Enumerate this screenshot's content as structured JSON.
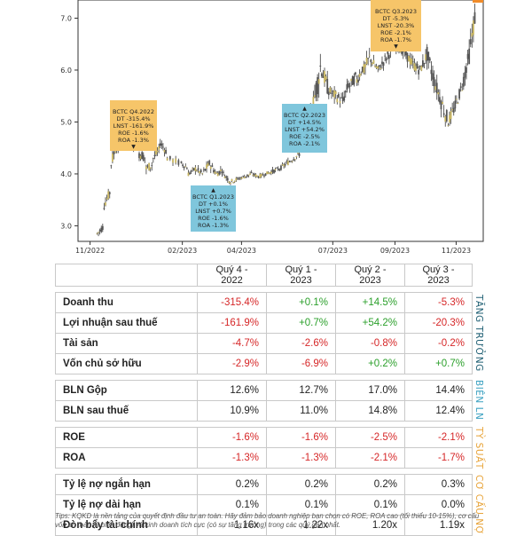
{
  "chart_data": {
    "type": "candlestick",
    "y_ticks": [
      "3.0",
      "4.0",
      "5.0",
      "6.0",
      "7.0"
    ],
    "y_range": [
      2.7,
      7.35
    ],
    "x_ticks": [
      "11/2022",
      "02/2023",
      "04/2023",
      "07/2023",
      "09/2023",
      "11/2023"
    ],
    "series_color_up": "#3a3a3a",
    "series_color_body": "#c8b560",
    "prices": [
      {
        "t": "2022-11-08",
        "o": 2.85,
        "h": 3.2,
        "l": 2.8,
        "c": 3.0
      },
      {
        "t": "2022-11-15",
        "o": 3.4,
        "h": 3.8,
        "l": 3.3,
        "c": 3.7
      },
      {
        "t": "2022-11-22",
        "o": 4.2,
        "h": 4.8,
        "l": 4.1,
        "c": 4.7
      },
      {
        "t": "2022-11-29",
        "o": 4.5,
        "h": 5.1,
        "l": 4.4,
        "c": 4.9
      },
      {
        "t": "2022-12-06",
        "o": 4.8,
        "h": 5.2,
        "l": 4.6,
        "c": 4.9
      },
      {
        "t": "2022-12-13",
        "o": 4.6,
        "h": 4.9,
        "l": 4.4,
        "c": 4.5
      },
      {
        "t": "2022-12-20",
        "o": 4.4,
        "h": 4.7,
        "l": 4.1,
        "c": 4.3
      },
      {
        "t": "2022-12-27",
        "o": 4.1,
        "h": 4.4,
        "l": 3.9,
        "c": 4.2
      },
      {
        "t": "2023-01-03",
        "o": 4.3,
        "h": 4.6,
        "l": 4.2,
        "c": 4.5
      },
      {
        "t": "2023-01-10",
        "o": 4.6,
        "h": 4.7,
        "l": 4.3,
        "c": 4.4
      },
      {
        "t": "2023-01-17",
        "o": 4.3,
        "h": 4.5,
        "l": 4.1,
        "c": 4.2
      },
      {
        "t": "2023-01-31",
        "o": 4.2,
        "h": 4.3,
        "l": 4.0,
        "c": 4.1
      },
      {
        "t": "2023-02-07",
        "o": 4.0,
        "h": 4.2,
        "l": 3.9,
        "c": 4.1
      },
      {
        "t": "2023-02-14",
        "o": 4.1,
        "h": 4.3,
        "l": 3.95,
        "c": 4.0
      },
      {
        "t": "2023-02-21",
        "o": 4.0,
        "h": 4.3,
        "l": 3.9,
        "c": 4.2
      },
      {
        "t": "2023-02-28",
        "o": 4.2,
        "h": 4.3,
        "l": 3.9,
        "c": 4.0
      },
      {
        "t": "2023-03-07",
        "o": 4.0,
        "h": 4.2,
        "l": 3.85,
        "c": 4.1
      },
      {
        "t": "2023-03-14",
        "o": 4.0,
        "h": 4.1,
        "l": 3.8,
        "c": 3.85
      },
      {
        "t": "2023-03-21",
        "o": 3.85,
        "h": 4.0,
        "l": 3.75,
        "c": 3.9
      },
      {
        "t": "2023-03-28",
        "o": 3.9,
        "h": 4.0,
        "l": 3.8,
        "c": 3.95
      },
      {
        "t": "2023-04-04",
        "o": 3.95,
        "h": 4.1,
        "l": 3.85,
        "c": 4.0
      },
      {
        "t": "2023-04-11",
        "o": 4.0,
        "h": 4.1,
        "l": 3.9,
        "c": 3.95
      },
      {
        "t": "2023-04-18",
        "o": 3.95,
        "h": 4.05,
        "l": 3.85,
        "c": 4.0
      },
      {
        "t": "2023-04-25",
        "o": 4.0,
        "h": 4.1,
        "l": 3.9,
        "c": 4.05
      },
      {
        "t": "2023-05-02",
        "o": 4.05,
        "h": 4.2,
        "l": 3.95,
        "c": 4.1
      },
      {
        "t": "2023-05-09",
        "o": 4.1,
        "h": 4.3,
        "l": 4.05,
        "c": 4.2
      },
      {
        "t": "2023-05-16",
        "o": 4.2,
        "h": 4.4,
        "l": 4.1,
        "c": 4.3
      },
      {
        "t": "2023-05-23",
        "o": 4.3,
        "h": 4.5,
        "l": 4.2,
        "c": 4.4
      },
      {
        "t": "2023-05-30",
        "o": 4.5,
        "h": 5.2,
        "l": 4.4,
        "c": 5.0
      },
      {
        "t": "2023-06-06",
        "o": 5.0,
        "h": 5.6,
        "l": 4.9,
        "c": 5.5
      },
      {
        "t": "2023-06-13",
        "o": 5.5,
        "h": 6.8,
        "l": 5.4,
        "c": 6.2
      },
      {
        "t": "2023-06-20",
        "o": 6.0,
        "h": 6.3,
        "l": 5.4,
        "c": 5.6
      },
      {
        "t": "2023-06-27",
        "o": 5.6,
        "h": 5.9,
        "l": 5.3,
        "c": 5.5
      },
      {
        "t": "2023-07-04",
        "o": 5.5,
        "h": 5.8,
        "l": 5.2,
        "c": 5.4
      },
      {
        "t": "2023-07-11",
        "o": 5.4,
        "h": 5.9,
        "l": 5.3,
        "c": 5.8
      },
      {
        "t": "2023-07-18",
        "o": 5.7,
        "h": 6.1,
        "l": 5.5,
        "c": 5.9
      },
      {
        "t": "2023-07-25",
        "o": 5.8,
        "h": 6.2,
        "l": 5.6,
        "c": 6.1
      },
      {
        "t": "2023-08-01",
        "o": 6.0,
        "h": 6.5,
        "l": 5.8,
        "c": 6.3
      },
      {
        "t": "2023-08-08",
        "o": 6.2,
        "h": 6.4,
        "l": 5.9,
        "c": 6.0
      },
      {
        "t": "2023-08-15",
        "o": 6.0,
        "h": 6.3,
        "l": 5.8,
        "c": 6.2
      },
      {
        "t": "2023-08-22",
        "o": 6.2,
        "h": 6.6,
        "l": 6.0,
        "c": 6.4
      },
      {
        "t": "2023-08-29",
        "o": 6.4,
        "h": 6.9,
        "l": 6.2,
        "c": 6.6
      },
      {
        "t": "2023-09-05",
        "o": 6.5,
        "h": 6.8,
        "l": 6.1,
        "c": 6.3
      },
      {
        "t": "2023-09-12",
        "o": 6.3,
        "h": 6.5,
        "l": 5.9,
        "c": 6.1
      },
      {
        "t": "2023-09-19",
        "o": 6.1,
        "h": 6.4,
        "l": 5.8,
        "c": 6.0
      },
      {
        "t": "2023-09-26",
        "o": 6.0,
        "h": 6.5,
        "l": 5.9,
        "c": 6.3
      },
      {
        "t": "2023-10-03",
        "o": 6.3,
        "h": 6.5,
        "l": 5.6,
        "c": 5.8
      },
      {
        "t": "2023-10-10",
        "o": 5.8,
        "h": 6.0,
        "l": 5.2,
        "c": 5.4
      },
      {
        "t": "2023-10-17",
        "o": 5.4,
        "h": 5.6,
        "l": 4.7,
        "c": 5.0
      },
      {
        "t": "2023-10-24",
        "o": 5.0,
        "h": 5.5,
        "l": 4.9,
        "c": 5.3
      },
      {
        "t": "2023-10-31",
        "o": 5.3,
        "h": 5.9,
        "l": 5.2,
        "c": 5.7
      },
      {
        "t": "2023-11-07",
        "o": 5.7,
        "h": 6.4,
        "l": 5.6,
        "c": 6.3
      },
      {
        "t": "2023-11-14",
        "o": 6.3,
        "h": 7.3,
        "l": 6.2,
        "c": 7.2
      }
    ],
    "annotations": [
      {
        "text": [
          "BCTC Q4.2022",
          "DT -315.4%",
          "LNST -161.9%",
          "ROE -1.6%",
          "ROA -1.3%"
        ],
        "color": "orange",
        "arrow": "▼"
      },
      {
        "text": [
          "BCTC Q1.2023",
          "DT +0.1%",
          "LNST +0.7%",
          "ROE -1.6%",
          "ROA -1.3%"
        ],
        "color": "blue",
        "arrow": "▲"
      },
      {
        "text": [
          "BCTC Q2.2023",
          "DT +14.5%",
          "LNST +54.2%",
          "ROE -2.5%",
          "ROA -2.1%"
        ],
        "color": "blue",
        "arrow": "▲"
      },
      {
        "text": [
          "BCTC Q3.2023",
          "DT -5.3%",
          "LNST -20.3%",
          "ROE -2.1%",
          "ROA -1.7%"
        ],
        "color": "orange",
        "arrow": "▼"
      }
    ]
  },
  "table": {
    "headers": [
      "Quý 4 - 2022",
      "Quý 1 - 2023",
      "Quý 2 - 2023",
      "Quý 3 - 2023"
    ],
    "groups": [
      {
        "side_label": "TĂNG TRƯỞNG",
        "side_color": "#1f5f73",
        "rows": [
          {
            "label": "Doanh thu",
            "values": [
              "-315.4%",
              "+0.1%",
              "+14.5%",
              "-5.3%"
            ],
            "colors": [
              "neg",
              "pos",
              "pos",
              "neg"
            ]
          },
          {
            "label": "Lợi nhuận sau thuế",
            "values": [
              "-161.9%",
              "+0.7%",
              "+54.2%",
              "-20.3%"
            ],
            "colors": [
              "neg",
              "pos",
              "pos",
              "neg"
            ]
          },
          {
            "label": "Tài sản",
            "values": [
              "-4.7%",
              "-2.6%",
              "-0.8%",
              "-0.2%"
            ],
            "colors": [
              "neg",
              "neg",
              "neg",
              "neg"
            ]
          },
          {
            "label": "Vốn chủ sở hữu",
            "values": [
              "-2.9%",
              "-6.9%",
              "+0.2%",
              "+0.7%"
            ],
            "colors": [
              "neg",
              "neg",
              "pos",
              "pos"
            ]
          }
        ]
      },
      {
        "side_label": "BIÊN LN",
        "side_color": "#3fa3c2",
        "rows": [
          {
            "label": "BLN Gộp",
            "values": [
              "12.6%",
              "12.7%",
              "17.0%",
              "14.4%"
            ],
            "colors": [
              "",
              "",
              "",
              ""
            ]
          },
          {
            "label": "BLN sau thuế",
            "values": [
              "10.9%",
              "11.0%",
              "14.8%",
              "12.4%"
            ],
            "colors": [
              "",
              "",
              "",
              ""
            ]
          }
        ]
      },
      {
        "side_label": "TỶ SUẤT",
        "side_color": "#e8a43a",
        "rows": [
          {
            "label": "ROE",
            "values": [
              "-1.6%",
              "-1.6%",
              "-2.5%",
              "-2.1%"
            ],
            "colors": [
              "neg",
              "neg",
              "neg",
              "neg"
            ]
          },
          {
            "label": "ROA",
            "values": [
              "-1.3%",
              "-1.3%",
              "-2.1%",
              "-1.7%"
            ],
            "colors": [
              "neg",
              "neg",
              "neg",
              "neg"
            ]
          }
        ]
      },
      {
        "side_label": "CƠ CẤU NỢ",
        "side_color": "#e8a43a",
        "rows": [
          {
            "label": "Tỷ lệ nợ ngắn hạn",
            "values": [
              "0.2%",
              "0.2%",
              "0.2%",
              "0.3%"
            ],
            "colors": [
              "",
              "",
              "",
              ""
            ]
          },
          {
            "label": "Tỷ lệ nợ dài hạn",
            "values": [
              "0.1%",
              "0.1%",
              "0.1%",
              "0.0%"
            ],
            "colors": [
              "",
              "",
              "",
              ""
            ]
          },
          {
            "label": "Đòn bẩy tài chính",
            "values": [
              "1.16x",
              "1.22x",
              "1.20x",
              "1.19x"
            ],
            "colors": [
              "",
              "",
              "",
              ""
            ]
          }
        ]
      }
    ]
  },
  "tips": "Tips: KQKD là nền tảng của quyết định đầu tư an toàn. Hãy đảm bảo doanh nghiệp bạn chọn có ROE, ROA cao (tối thiểu 10-15%), cơ cấu vốn an toàn (ít biến động) và kinh doanh tích cực (có sự tăng trưởng) trong các quý gần nhất."
}
